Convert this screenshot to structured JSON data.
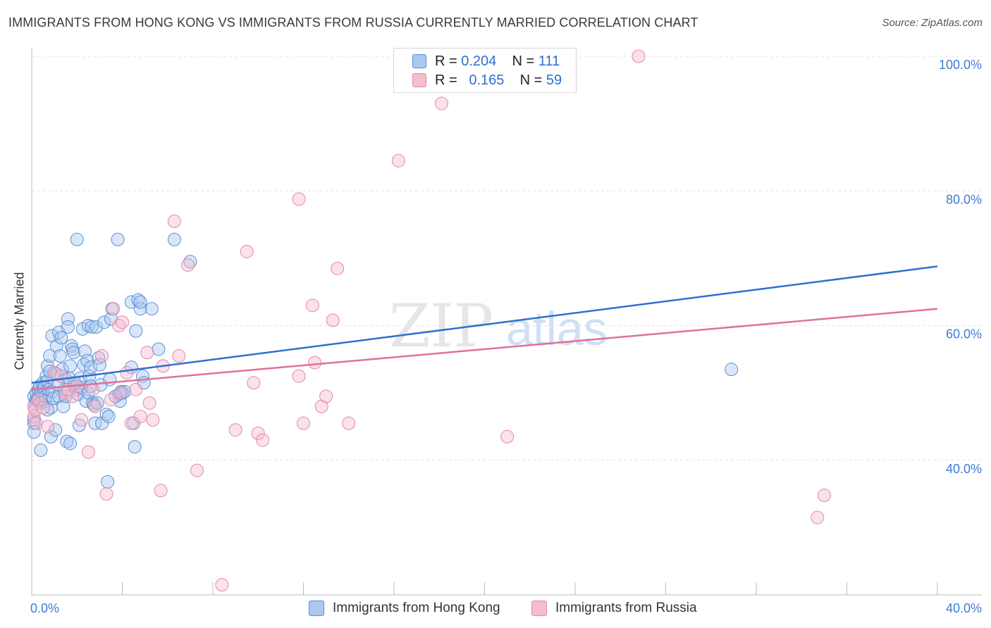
{
  "header": {
    "title": "IMMIGRANTS FROM HONG KONG VS IMMIGRANTS FROM RUSSIA CURRENTLY MARRIED CORRELATION CHART",
    "source": "Source: ZipAtlas.com"
  },
  "watermark": {
    "part1": "ZIP",
    "part2": "atlas"
  },
  "legend": {
    "items": [
      {
        "r_label": "R =",
        "r_value": "0.204",
        "n_label": "N =",
        "n_value": "111"
      },
      {
        "r_label": "R =",
        "r_value": "0.165",
        "n_label": "N =",
        "n_value": "59"
      }
    ]
  },
  "bottom_legend": {
    "series1": "Immigrants from Hong Kong",
    "series2": "Immigrants from Russia"
  },
  "colors": {
    "blue_fill": "#aac8f0",
    "blue_stroke": "#5b8fd6",
    "blue_line": "#2f6fd0",
    "pink_fill": "#f5bdd0",
    "pink_stroke": "#e487a8",
    "pink_line": "#e0709a",
    "axis_text": "#3d7bd6"
  },
  "chart_data": {
    "type": "scatter",
    "title": "IMMIGRANTS FROM HONG KONG VS IMMIGRANTS FROM RUSSIA CURRENTLY MARRIED CORRELATION CHART",
    "xlabel": "",
    "ylabel": "Currently Married",
    "xlim": [
      0,
      40
    ],
    "ylim": [
      20,
      102
    ],
    "x_tick_labels": [
      "0.0%",
      "40.0%"
    ],
    "y_ticks": [
      40,
      60,
      80,
      100
    ],
    "y_tick_labels": [
      "40.0%",
      "60.0%",
      "80.0%",
      "100.0%"
    ],
    "grid": true,
    "series": [
      {
        "name": "Immigrants from Hong Kong",
        "R": 0.204,
        "N": 111,
        "trend": {
          "x": [
            0,
            40
          ],
          "y": [
            51.5,
            68.8
          ]
        },
        "points": [
          [
            0.1,
            49.5
          ],
          [
            0.1,
            46
          ],
          [
            0.1,
            45.5
          ],
          [
            0.1,
            44.2
          ],
          [
            0.15,
            48.5
          ],
          [
            0.2,
            49
          ],
          [
            0.2,
            50
          ],
          [
            0.25,
            48.8
          ],
          [
            0.3,
            50.5
          ],
          [
            0.3,
            49.2
          ],
          [
            0.35,
            51
          ],
          [
            0.4,
            50.2
          ],
          [
            0.4,
            41.5
          ],
          [
            0.5,
            51.5
          ],
          [
            0.5,
            50
          ],
          [
            0.55,
            50.8
          ],
          [
            0.6,
            49.5
          ],
          [
            0.6,
            48.8
          ],
          [
            0.65,
            52.5
          ],
          [
            0.7,
            54
          ],
          [
            0.7,
            51.8
          ],
          [
            0.75,
            50.5
          ],
          [
            0.8,
            55.5
          ],
          [
            0.8,
            53.2
          ],
          [
            0.85,
            43.5
          ],
          [
            0.85,
            47.8
          ],
          [
            0.9,
            58.5
          ],
          [
            0.9,
            50.2
          ],
          [
            0.95,
            49.2
          ],
          [
            1.0,
            53
          ],
          [
            1.05,
            44.5
          ],
          [
            1.1,
            52.8
          ],
          [
            1.1,
            57
          ],
          [
            1.2,
            59
          ],
          [
            1.2,
            49.5
          ],
          [
            1.25,
            55.5
          ],
          [
            1.3,
            58.2
          ],
          [
            1.35,
            53.5
          ],
          [
            1.4,
            48
          ],
          [
            1.45,
            50.5
          ],
          [
            1.5,
            52
          ],
          [
            1.5,
            49.5
          ],
          [
            1.55,
            42.8
          ],
          [
            1.6,
            61
          ],
          [
            1.6,
            59.8
          ],
          [
            1.65,
            52.2
          ],
          [
            1.7,
            54
          ],
          [
            1.7,
            42.5
          ],
          [
            1.75,
            57
          ],
          [
            1.8,
            56.5
          ],
          [
            1.85,
            56
          ],
          [
            1.9,
            51
          ],
          [
            2.0,
            50.5
          ],
          [
            2.0,
            72.8
          ],
          [
            2.05,
            49.8
          ],
          [
            2.1,
            45.2
          ],
          [
            2.15,
            52.2
          ],
          [
            2.2,
            50.8
          ],
          [
            2.25,
            59.5
          ],
          [
            2.3,
            54.2
          ],
          [
            2.35,
            56.2
          ],
          [
            2.4,
            48.8
          ],
          [
            2.45,
            54.8
          ],
          [
            2.5,
            60
          ],
          [
            2.5,
            50
          ],
          [
            2.55,
            52.5
          ],
          [
            2.6,
            53.8
          ],
          [
            2.65,
            59.8
          ],
          [
            2.7,
            48.5
          ],
          [
            2.75,
            48.2
          ],
          [
            2.8,
            45.5
          ],
          [
            2.85,
            59.8
          ],
          [
            2.9,
            48.5
          ],
          [
            2.95,
            55.2
          ],
          [
            3.0,
            54.2
          ],
          [
            3.05,
            51.2
          ],
          [
            3.1,
            45.5
          ],
          [
            3.2,
            60.5
          ],
          [
            3.3,
            46.8
          ],
          [
            3.35,
            36.8
          ],
          [
            3.4,
            46.5
          ],
          [
            3.45,
            52
          ],
          [
            3.5,
            61
          ],
          [
            3.55,
            62.5
          ],
          [
            3.8,
            72.8
          ],
          [
            3.85,
            49.8
          ],
          [
            3.9,
            48.8
          ],
          [
            3.95,
            50.2
          ],
          [
            4.0,
            50
          ],
          [
            4.1,
            50.2
          ],
          [
            4.4,
            53.8
          ],
          [
            4.4,
            63.5
          ],
          [
            4.5,
            45.5
          ],
          [
            4.55,
            42
          ],
          [
            4.6,
            59.2
          ],
          [
            4.7,
            63.8
          ],
          [
            4.8,
            62.5
          ],
          [
            4.8,
            63.5
          ],
          [
            4.9,
            52.5
          ],
          [
            4.95,
            51.5
          ],
          [
            5.3,
            62.5
          ],
          [
            5.6,
            56.5
          ],
          [
            6.3,
            72.8
          ],
          [
            7.0,
            69.5
          ],
          [
            30.9,
            53.5
          ],
          [
            0.4,
            48.5
          ],
          [
            1.15,
            51.2
          ],
          [
            2.6,
            51
          ],
          [
            0.7,
            47.5
          ],
          [
            1.9,
            51.5
          ],
          [
            3.7,
            49.5
          ]
        ]
      },
      {
        "name": "Immigrants from Russia",
        "R": 0.165,
        "N": 59,
        "trend": {
          "x": [
            0,
            40
          ],
          "y": [
            50.5,
            62.5
          ]
        },
        "points": [
          [
            0.1,
            48
          ],
          [
            0.1,
            46.5
          ],
          [
            0.15,
            47.5
          ],
          [
            0.2,
            45.5
          ],
          [
            0.3,
            49
          ],
          [
            0.5,
            47.8
          ],
          [
            0.7,
            45
          ],
          [
            1.0,
            53
          ],
          [
            1.3,
            52.5
          ],
          [
            1.5,
            50
          ],
          [
            1.8,
            49.5
          ],
          [
            2.0,
            51
          ],
          [
            2.2,
            46
          ],
          [
            2.5,
            41.2
          ],
          [
            2.7,
            50.5
          ],
          [
            2.8,
            48
          ],
          [
            3.1,
            55.5
          ],
          [
            3.3,
            35
          ],
          [
            3.5,
            49
          ],
          [
            3.6,
            62.5
          ],
          [
            3.85,
            60
          ],
          [
            4.0,
            60.5
          ],
          [
            4.2,
            53
          ],
          [
            4.4,
            45.5
          ],
          [
            4.6,
            50.5
          ],
          [
            4.8,
            46.5
          ],
          [
            5.1,
            56
          ],
          [
            5.2,
            48.5
          ],
          [
            5.35,
            46
          ],
          [
            5.7,
            35.5
          ],
          [
            5.8,
            54
          ],
          [
            6.3,
            75.5
          ],
          [
            6.5,
            55.5
          ],
          [
            6.9,
            69
          ],
          [
            7.3,
            38.5
          ],
          [
            8.4,
            21.5
          ],
          [
            9.0,
            44.5
          ],
          [
            9.5,
            71
          ],
          [
            9.8,
            51.5
          ],
          [
            10.0,
            44
          ],
          [
            10.2,
            43
          ],
          [
            11.8,
            78.8
          ],
          [
            11.8,
            52.5
          ],
          [
            12.0,
            45.5
          ],
          [
            12.4,
            63
          ],
          [
            12.5,
            54.5
          ],
          [
            12.8,
            48
          ],
          [
            13.0,
            49.5
          ],
          [
            13.3,
            60.8
          ],
          [
            13.5,
            68.5
          ],
          [
            14.0,
            45.5
          ],
          [
            16.2,
            84.5
          ],
          [
            18.1,
            93
          ],
          [
            21.0,
            43.5
          ],
          [
            26.8,
            100
          ],
          [
            34.7,
            31.5
          ],
          [
            35.0,
            34.8
          ],
          [
            3.9,
            50
          ],
          [
            1.6,
            50.5
          ]
        ]
      }
    ]
  }
}
